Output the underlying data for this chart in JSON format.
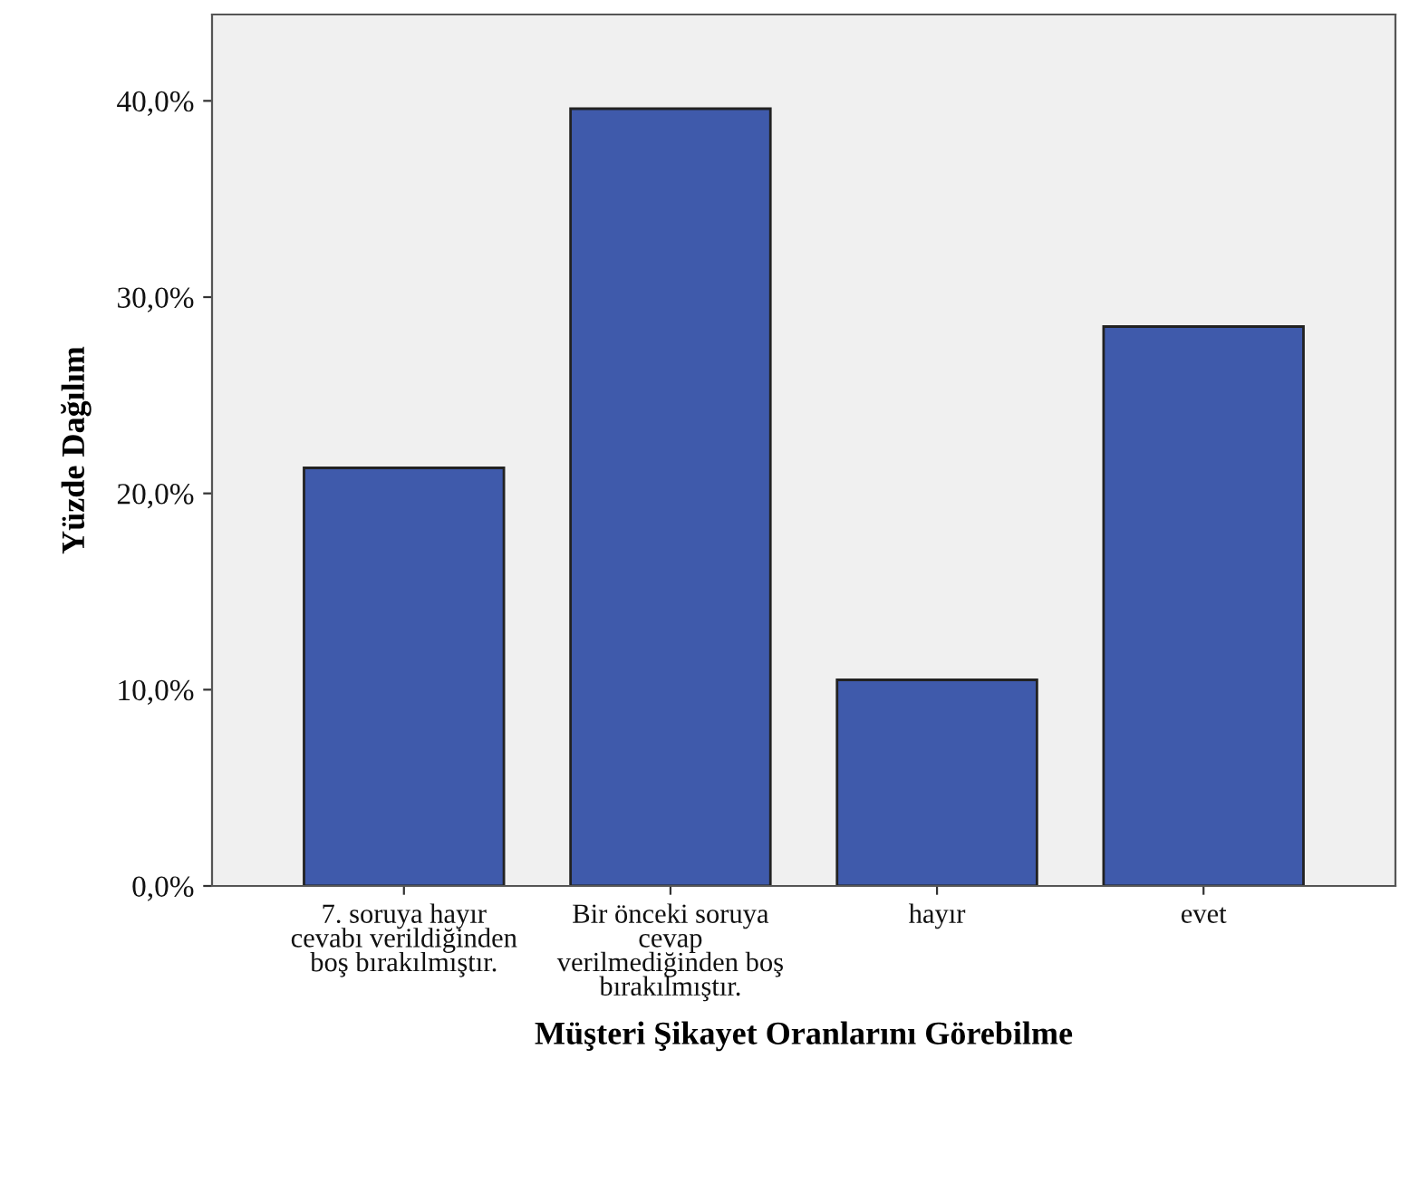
{
  "chart_data": {
    "type": "bar",
    "categories": [
      "7. soruya hayır\ncevabı verildiğinden\nboş bırakılmıştır.",
      "Bir önceki soruya\ncevap\nverilmediğinden boş\nbırakılmıştır.",
      "hayır",
      "evet"
    ],
    "values": [
      21.3,
      39.6,
      10.5,
      28.5
    ],
    "color": "#3f5aab",
    "xlabel": "Müşteri Şikayet Oranlarını Görebilme",
    "ylabel": "Yüzde Dağılım",
    "ylim": [
      0,
      44.4
    ],
    "yticks": [
      {
        "value": 0,
        "label": "0,0%"
      },
      {
        "value": 10,
        "label": "10,0%"
      },
      {
        "value": 20,
        "label": "20,0%"
      },
      {
        "value": 30,
        "label": "30,0%"
      },
      {
        "value": 40,
        "label": "40,0%"
      }
    ],
    "grid": false
  }
}
